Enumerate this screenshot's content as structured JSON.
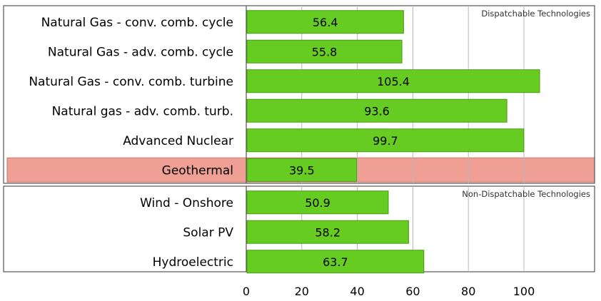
{
  "chart_data": {
    "type": "bar",
    "orientation": "horizontal",
    "title": "",
    "xlabel": "",
    "ylabel": "",
    "xlim": [
      0,
      125
    ],
    "ticks": [
      0,
      20,
      40,
      60,
      80,
      100
    ],
    "tick_labels": [
      "0",
      "20",
      "40",
      "60",
      "80",
      "100"
    ],
    "sections": [
      {
        "label": "Dispatchable Technologies",
        "items": [
          {
            "category": "Natural Gas - conv. comb. cycle",
            "value": 56.4,
            "value_label": "56.4",
            "highlight": false
          },
          {
            "category": "Natural Gas - adv. comb. cycle",
            "value": 55.8,
            "value_label": "55.8",
            "highlight": false
          },
          {
            "category": "Natural Gas - conv. comb. turbine",
            "value": 105.4,
            "value_label": "105.4",
            "highlight": false
          },
          {
            "category": "Natural gas - adv. comb. turb.",
            "value": 93.6,
            "value_label": "93.6",
            "highlight": false
          },
          {
            "category": "Advanced Nuclear",
            "value": 99.7,
            "value_label": "99.7",
            "highlight": false
          },
          {
            "category": "Geothermal",
            "value": 39.5,
            "value_label": "39.5",
            "highlight": true
          }
        ]
      },
      {
        "label": "Non-Dispatchable Technologies",
        "items": [
          {
            "category": "Wind - Onshore",
            "value": 50.9,
            "value_label": "50.9",
            "highlight": false
          },
          {
            "category": "Solar PV",
            "value": 58.2,
            "value_label": "58.2",
            "highlight": false
          },
          {
            "category": "Hydroelectric",
            "value": 63.7,
            "value_label": "63.7",
            "highlight": false
          }
        ]
      }
    ],
    "colors": {
      "bar": "#66cc22",
      "bar_stroke": "#4a9a14",
      "highlight": "#ef9f93",
      "highlight_stroke": "#c8786d",
      "grid": "#b8b8b8",
      "frame": "#555555"
    }
  }
}
